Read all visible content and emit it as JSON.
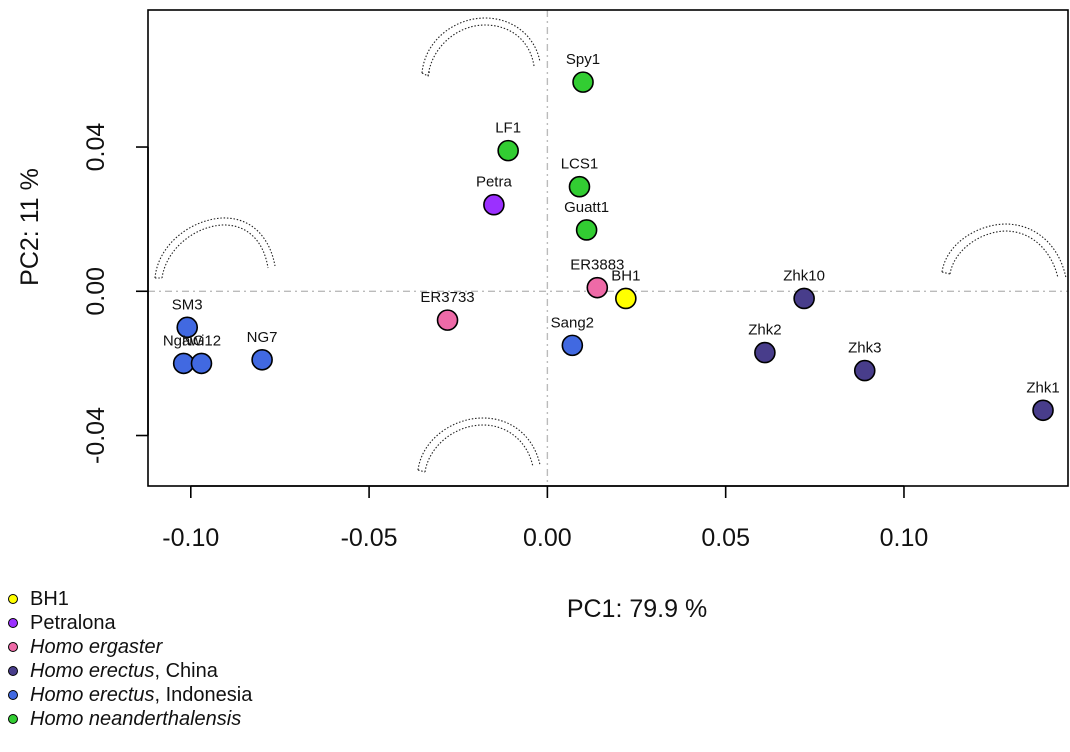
{
  "chart_data": {
    "type": "scatter",
    "xlabel": "PC1: 79.9 %",
    "ylabel": "PC2: 11 %",
    "xlim": [
      -0.112,
      0.146
    ],
    "ylim": [
      -0.054,
      0.078
    ],
    "x_ticks": [
      "-0.10",
      "-0.05",
      "0.00",
      "0.05",
      "0.10"
    ],
    "x_tick_values": [
      -0.1,
      -0.05,
      0.0,
      0.05,
      0.1
    ],
    "y_ticks": [
      "-0.04",
      "0.00",
      "0.04"
    ],
    "y_tick_values": [
      -0.04,
      0.0,
      0.04
    ],
    "reference_lines": {
      "x": 0,
      "y": 0,
      "style": "dash-dot",
      "color": "#bbbbbb"
    },
    "groups": [
      {
        "key": "bh1",
        "label_main": "BH1",
        "label_suffix": "",
        "italic": false,
        "color": "#ffff00"
      },
      {
        "key": "petralona",
        "label_main": "Petralona",
        "label_suffix": "",
        "italic": false,
        "color": "#9b30ff"
      },
      {
        "key": "ergaster",
        "label_main": "Homo ergaster",
        "label_suffix": "",
        "italic": true,
        "color": "#ee6aa7"
      },
      {
        "key": "erectus_china",
        "label_main": "Homo erectus",
        "label_suffix": ", China",
        "italic": true,
        "color": "#483d8b"
      },
      {
        "key": "erectus_indonesia",
        "label_main": "Homo erectus",
        "label_suffix": ", Indonesia",
        "italic": true,
        "color": "#4169e1"
      },
      {
        "key": "neanderthalensis",
        "label_main": "Homo neanderthalensis",
        "label_suffix": "",
        "italic": true,
        "color": "#32cd32"
      }
    ],
    "points": [
      {
        "label": "Spy1",
        "x": 0.01,
        "y": 0.058,
        "group": "neanderthalensis"
      },
      {
        "label": "LF1",
        "x": -0.011,
        "y": 0.039,
        "group": "neanderthalensis"
      },
      {
        "label": "LCS1",
        "x": 0.009,
        "y": 0.029,
        "group": "neanderthalensis"
      },
      {
        "label": "Petra",
        "x": -0.015,
        "y": 0.024,
        "group": "petralona"
      },
      {
        "label": "Guatt1",
        "x": 0.011,
        "y": 0.017,
        "group": "neanderthalensis"
      },
      {
        "label": "ER3883",
        "x": 0.014,
        "y": 0.001,
        "group": "ergaster"
      },
      {
        "label": "BH1",
        "x": 0.022,
        "y": -0.002,
        "group": "bh1"
      },
      {
        "label": "ER3733",
        "x": -0.028,
        "y": -0.008,
        "group": "ergaster"
      },
      {
        "label": "Sang2",
        "x": 0.007,
        "y": -0.015,
        "group": "erectus_indonesia"
      },
      {
        "label": "SM3",
        "x": -0.101,
        "y": -0.01,
        "group": "erectus_indonesia"
      },
      {
        "label": "Ngawi",
        "x": -0.102,
        "y": -0.02,
        "group": "erectus_indonesia"
      },
      {
        "label": "NG12",
        "x": -0.097,
        "y": -0.02,
        "group": "erectus_indonesia"
      },
      {
        "label": "NG7",
        "x": -0.08,
        "y": -0.019,
        "group": "erectus_indonesia"
      },
      {
        "label": "Zhk10",
        "x": 0.072,
        "y": -0.002,
        "group": "erectus_china"
      },
      {
        "label": "Zhk2",
        "x": 0.061,
        "y": -0.017,
        "group": "erectus_china"
      },
      {
        "label": "Zhk3",
        "x": 0.089,
        "y": -0.022,
        "group": "erectus_china"
      },
      {
        "label": "Zhk1",
        "x": 0.139,
        "y": -0.033,
        "group": "erectus_china"
      }
    ]
  }
}
